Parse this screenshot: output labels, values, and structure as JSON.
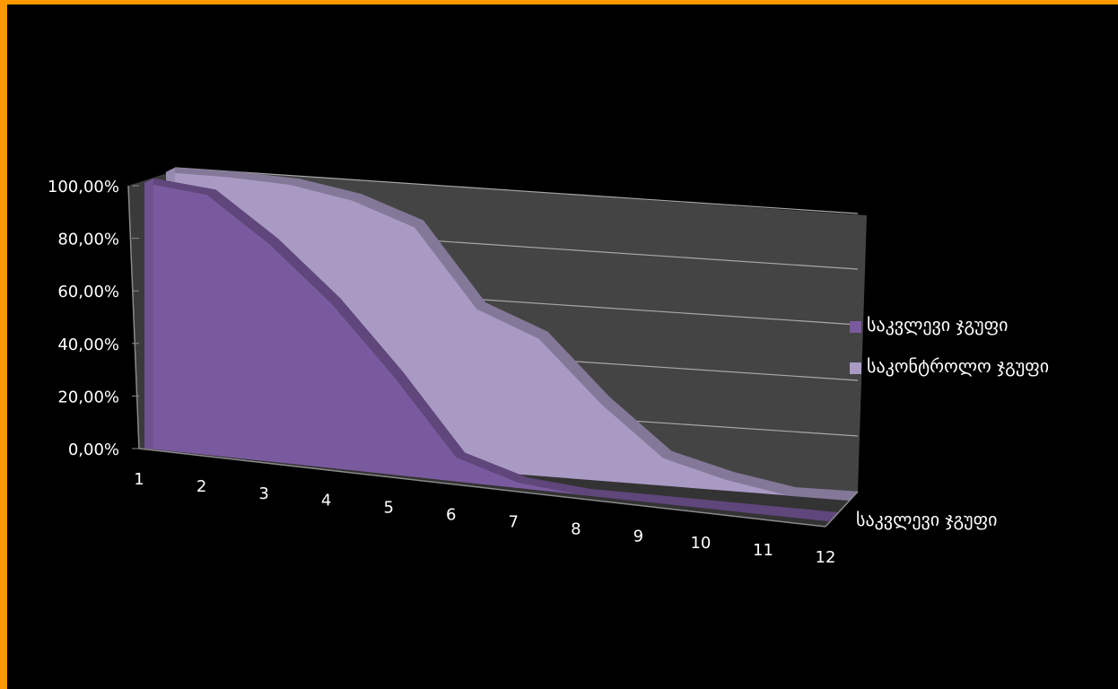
{
  "chart_data": {
    "type": "area",
    "is_3d": true,
    "categories": [
      "1",
      "2",
      "3",
      "4",
      "5",
      "6",
      "7",
      "8",
      "9",
      "10",
      "11",
      "12"
    ],
    "y_ticks": [
      "0,00%",
      "20,00%",
      "40,00%",
      "60,00%",
      "80,00%",
      "100,00%"
    ],
    "ylim": [
      0,
      100
    ],
    "series_axis_label": "საკვლევი ჯგუფი",
    "legend_position": "right",
    "grid": true,
    "series": [
      {
        "name": "საკვლევი ჯგუფი",
        "color": "#7a5a9e",
        "values": [
          100,
          98,
          82,
          62,
          37,
          9,
          2,
          0,
          0,
          0,
          0,
          0
        ]
      },
      {
        "name": "საკონტროლო ჯგუფი",
        "color": "#a99ac4",
        "values": [
          100,
          100,
          99,
          95,
          87,
          59,
          50,
          28,
          10,
          4,
          0,
          0
        ]
      }
    ]
  }
}
